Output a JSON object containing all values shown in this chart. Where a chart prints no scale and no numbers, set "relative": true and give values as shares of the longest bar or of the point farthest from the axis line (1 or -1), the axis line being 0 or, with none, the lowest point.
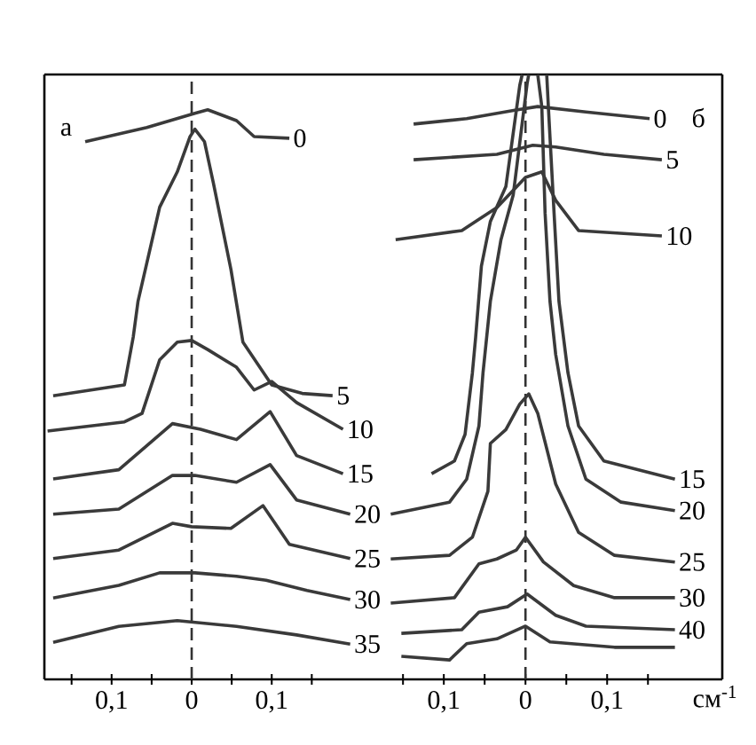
{
  "chart_data": [
    {
      "type": "line",
      "relative": true,
      "annotations": [
        "а"
      ],
      "xlim": [
        -0.184,
        0.215
      ],
      "xticks": [
        {
          "value": -0.15,
          "label": null
        },
        {
          "value": -0.1,
          "label": "0,1"
        },
        {
          "value": -0.05,
          "label": null
        },
        0,
        {
          "value": 0.05,
          "label": null
        },
        {
          "value": 0.1,
          "label": "0,1"
        },
        {
          "value": 0.15,
          "label": null
        }
      ],
      "ref_lines": [
        {
          "axis": "x",
          "value": 0,
          "line_style": "dashed",
          "color": "#333333"
        }
      ],
      "series": [
        {
          "name": "0",
          "color": "#3a3a3a",
          "x": [
            -0.133,
            -0.056,
            0.004,
            0.02,
            0.056,
            0.078,
            0.122
          ],
          "values": [
            0.944,
            0.969,
            0.994,
            1.0,
            0.981,
            0.953,
            0.95
          ]
        },
        {
          "name": "5",
          "color": "#3a3a3a",
          "x": [
            -0.173,
            -0.084,
            -0.073,
            -0.067,
            -0.04,
            -0.018,
            -0.002,
            0.004,
            0.016,
            0.027,
            0.049,
            0.064,
            0.1,
            0.138,
            0.176
          ],
          "values": [
            0.498,
            0.517,
            0.601,
            0.664,
            0.829,
            0.891,
            0.953,
            0.966,
            0.944,
            0.872,
            0.72,
            0.592,
            0.517,
            0.502,
            0.498
          ]
        },
        {
          "name": "10",
          "color": "#3a3a3a",
          "x": [
            -0.18,
            -0.084,
            -0.062,
            -0.04,
            -0.018,
            0,
            0.02,
            0.056,
            0.078,
            0.1,
            0.131,
            0.189
          ],
          "values": [
            0.436,
            0.452,
            0.467,
            0.561,
            0.592,
            0.595,
            0.579,
            0.548,
            0.508,
            0.523,
            0.486,
            0.439
          ]
        },
        {
          "name": "15",
          "color": "#3a3a3a",
          "x": [
            -0.173,
            -0.091,
            -0.024,
            0.011,
            0.056,
            0.098,
            0.131,
            0.189
          ],
          "values": [
            0.352,
            0.368,
            0.449,
            0.439,
            0.421,
            0.47,
            0.393,
            0.361
          ]
        },
        {
          "name": "20",
          "color": "#3a3a3a",
          "x": [
            -0.173,
            -0.091,
            -0.024,
            0.004,
            0.056,
            0.098,
            0.131,
            0.198
          ],
          "values": [
            0.29,
            0.299,
            0.358,
            0.358,
            0.346,
            0.377,
            0.315,
            0.29
          ]
        },
        {
          "name": "25",
          "color": "#3a3a3a",
          "x": [
            -0.173,
            -0.091,
            -0.024,
            0,
            0.049,
            0.089,
            0.122,
            0.198
          ],
          "values": [
            0.212,
            0.227,
            0.274,
            0.268,
            0.265,
            0.305,
            0.237,
            0.212
          ]
        },
        {
          "name": "30",
          "color": "#3a3a3a",
          "x": [
            -0.173,
            -0.091,
            -0.04,
            0.004,
            0.056,
            0.093,
            0.144,
            0.198
          ],
          "values": [
            0.143,
            0.165,
            0.187,
            0.187,
            0.181,
            0.174,
            0.156,
            0.14
          ]
        },
        {
          "name": "35",
          "color": "#3a3a3a",
          "x": [
            -0.173,
            -0.091,
            -0.018,
            0.056,
            0.131,
            0.198
          ],
          "values": [
            0.065,
            0.093,
            0.103,
            0.093,
            0.078,
            0.062
          ]
        }
      ]
    },
    {
      "type": "line",
      "relative": true,
      "annotations": [
        "б"
      ],
      "xlabel": "см$^{-1}$",
      "xlim": [
        -0.198,
        0.241
      ],
      "xticks": [
        {
          "value": -0.15,
          "label": null
        },
        {
          "value": -0.1,
          "label": "0,1"
        },
        {
          "value": -0.05,
          "label": null
        },
        0,
        {
          "value": 0.05,
          "label": null
        },
        {
          "value": 0.1,
          "label": "0,1"
        },
        {
          "value": 0.15,
          "label": null
        }
      ],
      "ref_lines": [
        {
          "axis": "x",
          "value": 0,
          "line_style": "dashed",
          "color": "#333333"
        }
      ],
      "series": [
        {
          "name": "0",
          "color": "#3a3a3a",
          "x": [
            -0.137,
            -0.072,
            -0.013,
            0.015,
            0.074,
            0.152
          ],
          "values": [
            0.918,
            0.927,
            0.941,
            0.947,
            0.938,
            0.927
          ]
        },
        {
          "name": "5",
          "color": "#3a3a3a",
          "x": [
            -0.137,
            -0.035,
            0.009,
            0.037,
            0.096,
            0.167
          ],
          "values": [
            0.859,
            0.868,
            0.883,
            0.88,
            0.868,
            0.859
          ]
        },
        {
          "name": "10",
          "color": "#3a3a3a",
          "x": [
            -0.159,
            -0.078,
            -0.035,
            0,
            0.02,
            0.037,
            0.065,
            0.167
          ],
          "values": [
            0.727,
            0.742,
            0.78,
            0.83,
            0.839,
            0.792,
            0.742,
            0.733
          ]
        },
        {
          "name": "15",
          "color": "#3a3a3a",
          "x": [
            -0.115,
            -0.087,
            -0.074,
            -0.065,
            -0.061,
            -0.054,
            -0.043,
            -0.024,
            -0.007,
            -0.004,
            0.011,
            0.026,
            0.028,
            0.035,
            0.041,
            0.052,
            0.065,
            0.096,
            0.183
          ],
          "values": [
            0.34,
            0.361,
            0.405,
            0.507,
            0.566,
            0.683,
            0.757,
            0.815,
            0.982,
            1.0,
            null,
            1.0,
            0.947,
            0.771,
            0.625,
            0.507,
            0.419,
            0.361,
            0.331
          ]
        },
        {
          "name": "20",
          "color": "#3a3a3a",
          "x": [
            -0.165,
            -0.093,
            -0.072,
            -0.057,
            -0.052,
            -0.043,
            -0.03,
            -0.015,
            0.002,
            0.004,
            0.009,
            0.015,
            0.02,
            0.024,
            0.03,
            0.037,
            0.052,
            0.074,
            0.117,
            0.183
          ],
          "values": [
            0.273,
            0.293,
            0.331,
            0.419,
            0.507,
            0.625,
            0.727,
            0.801,
            0.985,
            1.0,
            null,
            1.0,
            0.947,
            0.771,
            0.625,
            0.537,
            0.419,
            0.331,
            0.293,
            0.279
          ]
        },
        {
          "name": "25",
          "color": "#3a3a3a",
          "x": [
            -0.165,
            -0.093,
            -0.065,
            -0.046,
            -0.043,
            -0.024,
            -0.007,
            0.004,
            0.015,
            0.037,
            0.065,
            0.109,
            0.183
          ],
          "values": [
            0.199,
            0.205,
            0.235,
            0.311,
            0.39,
            0.413,
            0.455,
            0.472,
            0.44,
            0.323,
            0.243,
            0.205,
            0.194
          ]
        },
        {
          "name": "30",
          "color": "#3a3a3a",
          "x": [
            -0.165,
            -0.087,
            -0.057,
            -0.035,
            -0.011,
            0,
            0.022,
            0.059,
            0.109,
            0.183
          ],
          "values": [
            0.126,
            0.135,
            0.191,
            0.199,
            0.214,
            0.235,
            0.194,
            0.155,
            0.135,
            0.135
          ]
        },
        {
          "name": "40",
          "color": "#3a3a3a",
          "x": [
            -0.152,
            -0.078,
            -0.057,
            -0.022,
            0.002,
            0.037,
            0.074,
            0.183
          ],
          "values": [
            0.076,
            0.082,
            0.111,
            0.12,
            0.141,
            0.106,
            0.088,
            0.082
          ]
        },
        {
          "color": "#3a3a3a",
          "x": [
            -0.152,
            -0.093,
            -0.072,
            -0.035,
            0,
            0.03,
            0.109,
            0.183
          ],
          "values": [
            0.038,
            0.032,
            0.059,
            0.067,
            0.088,
            0.062,
            0.053,
            0.053
          ]
        }
      ]
    }
  ]
}
